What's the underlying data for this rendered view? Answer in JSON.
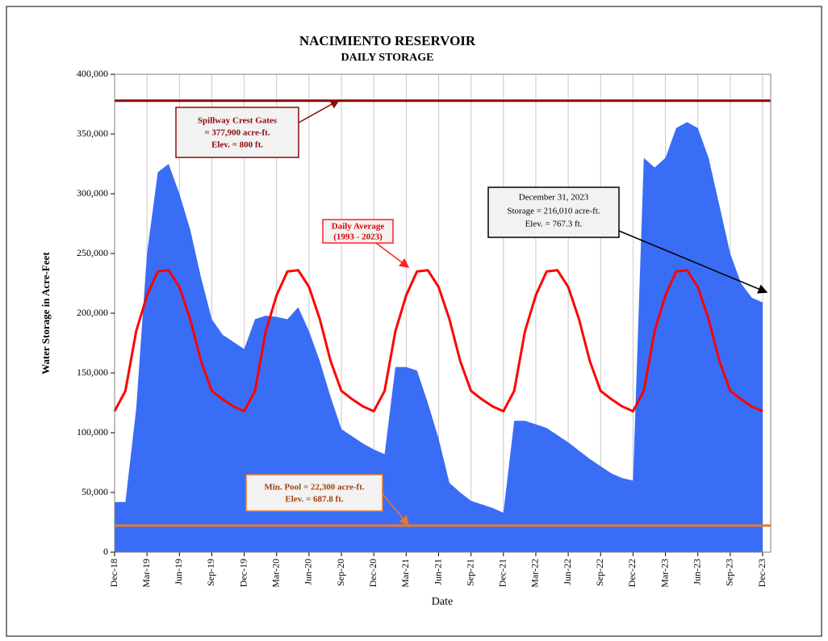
{
  "chart_data": {
    "type": "area",
    "title": "NACIMIENTO RESERVOIR",
    "subtitle": "DAILY STORAGE",
    "xlabel": "Date",
    "ylabel": "Water Storage in Acre-Feet",
    "categories": [
      "Dec-18",
      null,
      null,
      "Mar-19",
      null,
      null,
      "Jun-19",
      null,
      null,
      "Sep-19",
      null,
      null,
      "Dec-19",
      null,
      null,
      "Mar-20",
      null,
      null,
      "Jun-20",
      null,
      null,
      "Sep-20",
      null,
      null,
      "Dec-20",
      null,
      null,
      "Mar-21",
      null,
      null,
      "Jun-21",
      null,
      null,
      "Sep-21",
      null,
      null,
      "Dec-21",
      null,
      null,
      "Mar-22",
      null,
      null,
      "Jun-22",
      null,
      null,
      "Sep-22",
      null,
      null,
      "Dec-22",
      null,
      null,
      "Mar-23",
      null,
      null,
      "Jun-23",
      null,
      null,
      "Sep-23",
      null,
      null,
      "Dec-23"
    ],
    "series": [
      {
        "type": "area",
        "color": "#3a6df5",
        "values": [
          42000,
          42000,
          120000,
          250000,
          318000,
          325000,
          300000,
          270000,
          230000,
          195000,
          182000,
          176000,
          170000,
          195000,
          198000,
          197000,
          195000,
          205000,
          185000,
          160000,
          130000,
          103000,
          97000,
          91000,
          86000,
          82000,
          155000,
          155000,
          152000,
          125000,
          95000,
          58000,
          50000,
          43000,
          40000,
          37000,
          33000,
          110000,
          110000,
          107000,
          104000,
          98000,
          92000,
          85000,
          78000,
          72000,
          66000,
          62000,
          60000,
          330000,
          322000,
          330000,
          355000,
          360000,
          355000,
          330000,
          290000,
          250000,
          225000,
          213000,
          209000
        ]
      },
      {
        "type": "line",
        "color": "#ff0000",
        "values": [
          118000,
          135000,
          185000,
          215000,
          235000,
          236000,
          222000,
          195000,
          160000,
          135000,
          128000,
          122000,
          118000,
          135000,
          185000,
          215000,
          235000,
          236000,
          222000,
          195000,
          160000,
          135000,
          128000,
          122000,
          118000,
          135000,
          185000,
          215000,
          235000,
          236000,
          222000,
          195000,
          160000,
          135000,
          128000,
          122000,
          118000,
          135000,
          185000,
          215000,
          235000,
          236000,
          222000,
          195000,
          160000,
          135000,
          128000,
          122000,
          118000,
          135000,
          185000,
          215000,
          235000,
          236000,
          222000,
          195000,
          160000,
          135000,
          128000,
          122000,
          118000
        ]
      }
    ],
    "reference_lines": [
      {
        "value": 377900,
        "color": "#8b0a0a"
      },
      {
        "value": 22300,
        "color": "#e8772e"
      }
    ],
    "ylim": [
      0,
      400000
    ],
    "yticks": [
      0,
      {
        "value": 50000,
        "label": "50,000"
      },
      {
        "value": 100000,
        "label": "100,000"
      },
      {
        "value": 150000,
        "label": "150,000"
      },
      {
        "value": 200000,
        "label": "200,000"
      },
      {
        "value": 250000,
        "label": "250,000"
      },
      {
        "value": 300000,
        "label": "300,000"
      },
      {
        "value": 350000,
        "label": "350,000"
      },
      {
        "value": 400000,
        "label": "400,000"
      }
    ],
    "grid": true,
    "annotations": [
      {
        "lines": [
          "Spillway Crest Gates",
          "= 377,900 acre-ft.",
          "Elev. = 800 ft."
        ]
      },
      {
        "lines": [
          "Daily Average",
          "(1993 - 2023)"
        ]
      },
      {
        "lines": [
          "December 31, 2023",
          "Storage = 216,010 acre-ft.",
          "Elev. =  767.3 ft."
        ]
      },
      {
        "lines": [
          "Min. Pool = 22,300 acre-ft.",
          "Elev. = 687.8 ft."
        ]
      }
    ]
  }
}
